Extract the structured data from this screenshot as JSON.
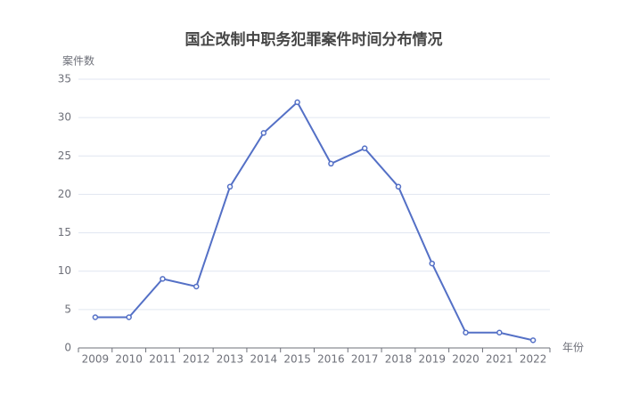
{
  "chart_data": {
    "type": "line",
    "title": "国企改制中职务犯罪案件时间分布情况",
    "y_label": "案件数",
    "x_label": "年份",
    "categories": [
      "2009",
      "2010",
      "2011",
      "2012",
      "2013",
      "2014",
      "2015",
      "2016",
      "2017",
      "2018",
      "2019",
      "2020",
      "2021",
      "2022"
    ],
    "values": [
      4,
      4,
      9,
      8,
      21,
      28,
      32,
      24,
      26,
      21,
      11,
      2,
      2,
      1
    ],
    "color": "#5470c6",
    "ylim": [
      0,
      35
    ],
    "yticks": [
      0,
      5,
      10,
      15,
      20,
      25,
      30,
      35
    ],
    "grid": true
  }
}
